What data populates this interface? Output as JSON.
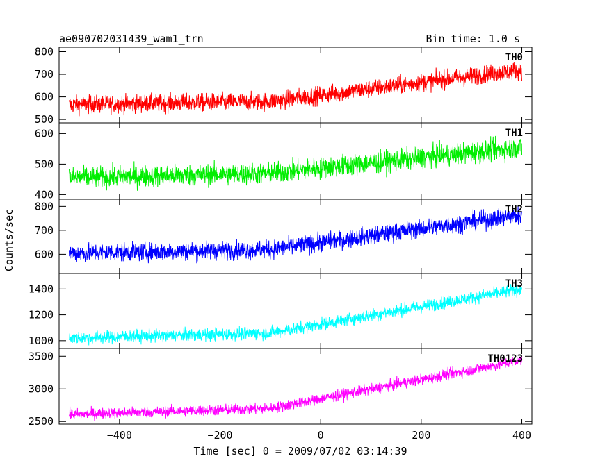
{
  "header": {
    "title": "ae090702031439_wam1_trn",
    "bin_time": "Bin time: 1.0 s"
  },
  "chart_data": {
    "type": "line",
    "title": "ae090702031439_wam1_trn",
    "subtitle": "Bin time: 1.0 s",
    "xlabel": "Time [sec] 0 = 2009/07/02 03:14:39",
    "ylabel": "Counts/sec",
    "xlim": [
      -520,
      420
    ],
    "x_ticks": [
      -400,
      -200,
      0,
      200,
      400
    ],
    "x_tick_labels": [
      "−400",
      "−200",
      "0",
      "200",
      "400"
    ],
    "grid": false,
    "panels": [
      {
        "name": "TH0",
        "color": "#ff0000",
        "ylim": [
          485,
          820
        ],
        "y_ticks": [
          500,
          600,
          700,
          800
        ],
        "series": {
          "x_range": [
            -500,
            400
          ],
          "trend": [
            [
              -500,
              565
            ],
            [
              -100,
              580
            ],
            [
              400,
              720
            ]
          ],
          "noise": 28
        }
      },
      {
        "name": "TH1",
        "color": "#00ee00",
        "ylim": [
          385,
          635
        ],
        "y_ticks": [
          400,
          500,
          600
        ],
        "series": {
          "x_range": [
            -500,
            400
          ],
          "trend": [
            [
              -500,
              455
            ],
            [
              -100,
              470
            ],
            [
              400,
              555
            ]
          ],
          "noise": 25
        }
      },
      {
        "name": "TH2",
        "color": "#0000ff",
        "ylim": [
          520,
          830
        ],
        "y_ticks": [
          600,
          700,
          800
        ],
        "series": {
          "x_range": [
            -500,
            400
          ],
          "trend": [
            [
              -500,
              605
            ],
            [
              -100,
              620
            ],
            [
              400,
              765
            ]
          ],
          "noise": 27
        }
      },
      {
        "name": "TH3",
        "color": "#00ffff",
        "ylim": [
          940,
          1520
        ],
        "y_ticks": [
          1000,
          1200,
          1400
        ],
        "series": {
          "x_range": [
            -500,
            400
          ],
          "trend": [
            [
              -500,
              1020
            ],
            [
              -100,
              1060
            ],
            [
              400,
              1400
            ]
          ],
          "noise": 35
        }
      },
      {
        "name": "TH0123",
        "color": "#ff00ff",
        "ylim": [
          2460,
          3620
        ],
        "y_ticks": [
          2500,
          3000,
          3500
        ],
        "series": {
          "x_range": [
            -500,
            400
          ],
          "trend": [
            [
              -500,
              2610
            ],
            [
              -100,
              2700
            ],
            [
              400,
              3440
            ]
          ],
          "noise": 60
        }
      }
    ]
  }
}
